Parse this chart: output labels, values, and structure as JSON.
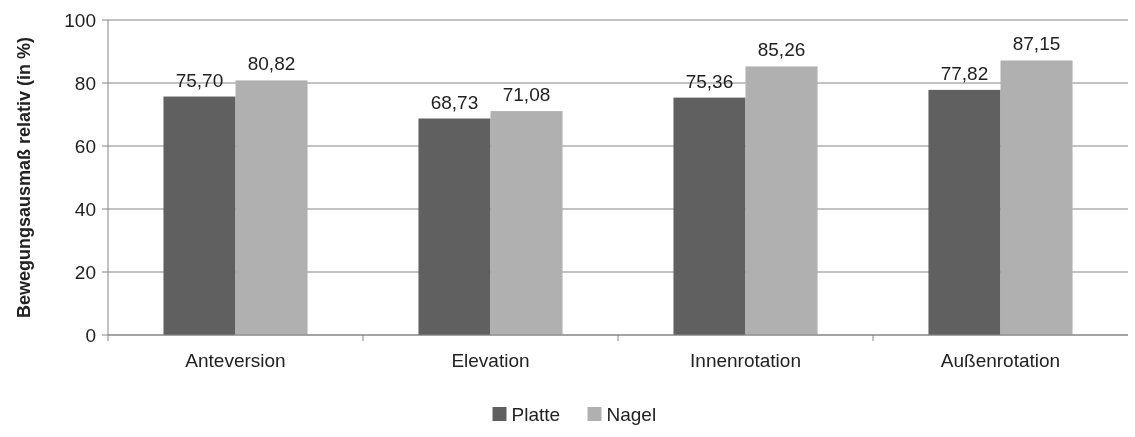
{
  "chart_data": {
    "type": "bar",
    "ylabel": "Bewegungsausmaß relativ (in %)",
    "categories": [
      "Anteversion",
      "Elevation",
      "Innenrotation",
      "Außenrotation"
    ],
    "series": [
      {
        "name": "Platte",
        "color": "#606060",
        "values": [
          75.7,
          68.73,
          75.36,
          77.82
        ],
        "value_labels": [
          "75,70",
          "68,73",
          "75,36",
          "77,82"
        ]
      },
      {
        "name": "Nagel",
        "color": "#b0b0b0",
        "values": [
          80.82,
          71.08,
          85.26,
          87.15
        ],
        "value_labels": [
          "80,82",
          "71,08",
          "85,26",
          "87,15"
        ]
      }
    ],
    "ylim": [
      0,
      100
    ],
    "yticks": [
      0,
      20,
      40,
      60,
      80,
      100
    ],
    "grid": "y",
    "legend": "bottom"
  }
}
